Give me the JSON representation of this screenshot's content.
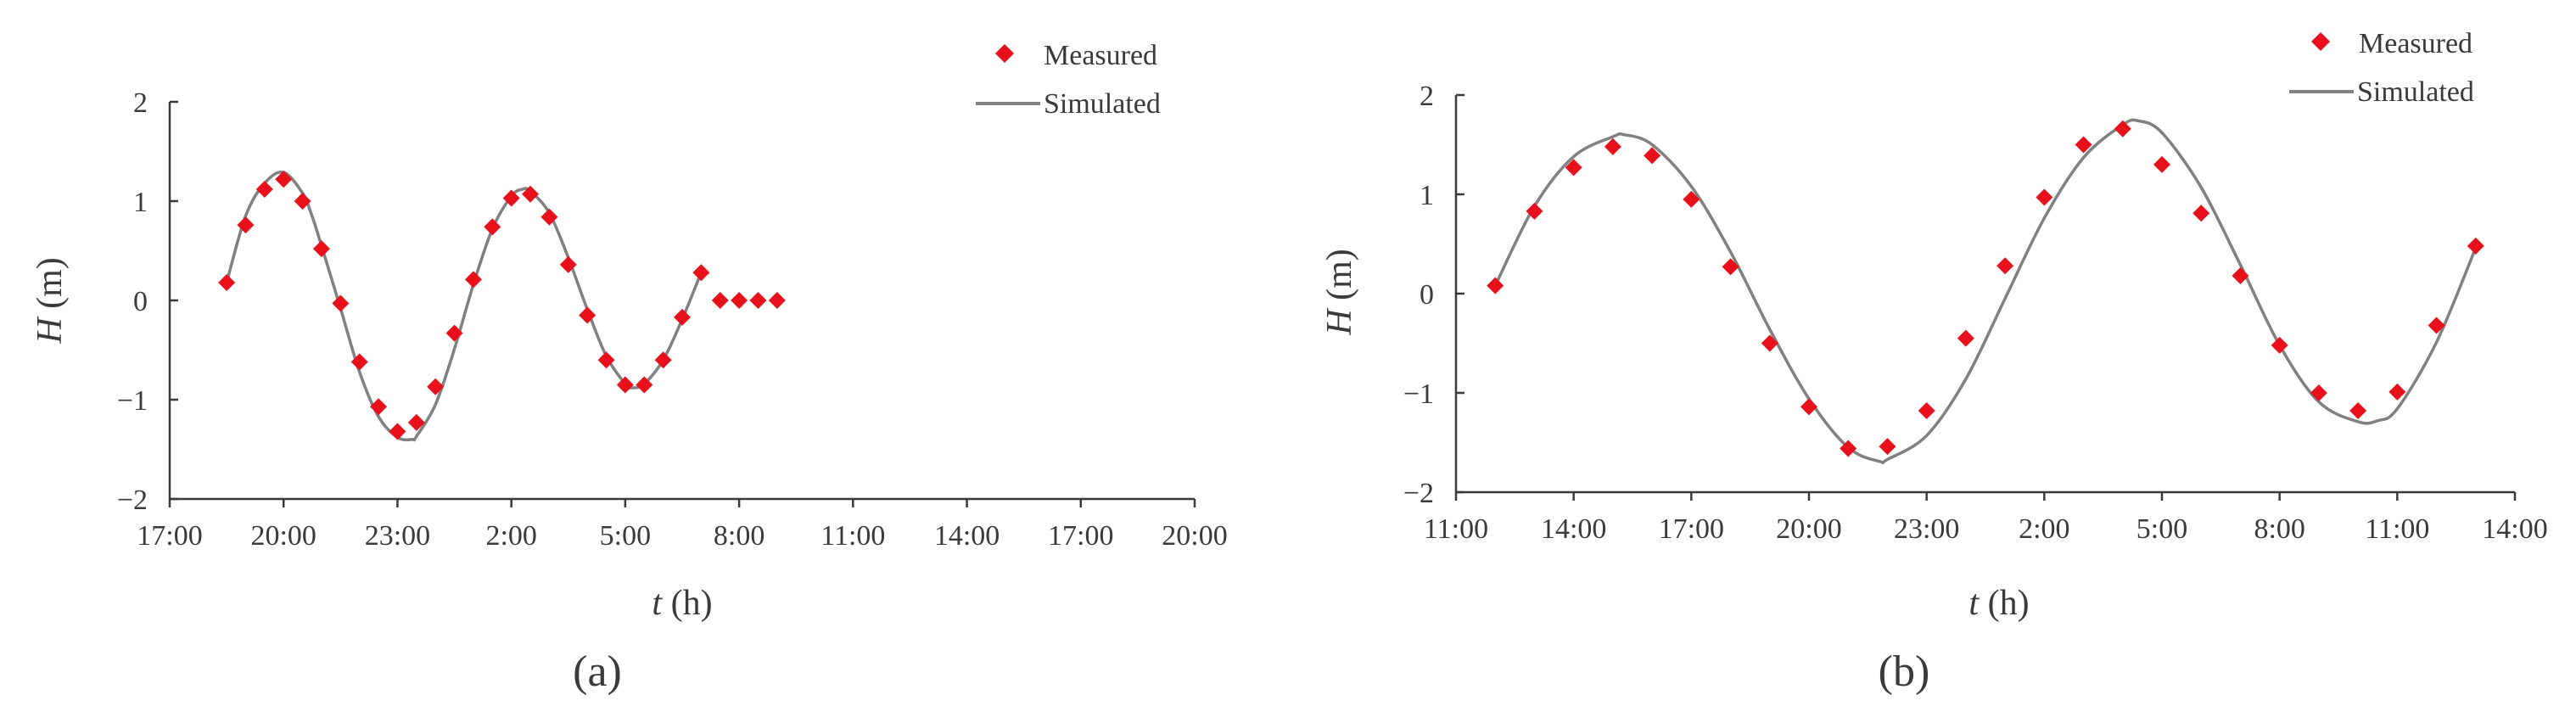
{
  "colors": {
    "measured": "#e8101a",
    "simulated": "#808080",
    "axis": "#3a3a3a",
    "text": "#3a3a3a"
  },
  "chart_data": [
    {
      "type": "scatter+line",
      "panel_label": "(a)",
      "xlabel_var": "t",
      "xlabel_unit": " (h)",
      "ylabel_var": "H",
      "ylabel_unit": " (m)",
      "xlim": [
        0,
        54
      ],
      "ylim": [
        -2,
        2
      ],
      "x_ticks": [
        {
          "x": 0,
          "label": "17:00"
        },
        {
          "x": 6,
          "label": "20:00"
        },
        {
          "x": 12,
          "label": "23:00"
        },
        {
          "x": 18,
          "label": "2:00"
        },
        {
          "x": 24,
          "label": "5:00"
        },
        {
          "x": 30,
          "label": "8:00"
        },
        {
          "x": 36,
          "label": "11:00"
        },
        {
          "x": 42,
          "label": "14:00"
        },
        {
          "x": 48,
          "label": "17:00"
        },
        {
          "x": 54,
          "label": "20:00"
        }
      ],
      "y_ticks": [
        {
          "y": 2,
          "label": "2"
        },
        {
          "x": 0,
          "y": 1,
          "label": "1"
        },
        {
          "y": 0,
          "label": "0"
        },
        {
          "y": -1,
          "label": "−1"
        },
        {
          "y": -2,
          "label": "−2"
        }
      ],
      "legend": {
        "measured": "Measured",
        "simulated": "Simulated",
        "placement": "top-right"
      },
      "series": [
        {
          "name": "Measured",
          "kind": "scatter",
          "x": [
            3,
            4,
            5,
            6,
            7,
            8,
            9,
            10,
            11,
            12,
            13,
            14,
            15,
            16,
            17,
            18,
            19,
            20,
            21,
            22,
            23,
            24,
            25,
            26,
            27,
            28,
            29,
            30,
            31,
            32
          ],
          "y": [
            0.18,
            0.76,
            1.12,
            1.22,
            1.0,
            0.52,
            -0.03,
            -0.62,
            -1.07,
            -1.32,
            -1.23,
            -0.87,
            -0.33,
            0.21,
            0.74,
            1.03,
            1.07,
            0.84,
            0.36,
            -0.15,
            -0.6,
            -0.85,
            -0.85,
            -0.6,
            -0.17,
            0.28,
            0,
            0,
            0,
            0
          ]
        },
        {
          "name": "Simulated",
          "kind": "line",
          "x": [
            3,
            4,
            5,
            6,
            7,
            7.5,
            8,
            9,
            10,
            11,
            12,
            12.8,
            13,
            14,
            15,
            16,
            17,
            18,
            18.6,
            19,
            20,
            21,
            22,
            23,
            24,
            24.4,
            25,
            26,
            27,
            28
          ],
          "y": [
            0.18,
            0.85,
            1.18,
            1.29,
            1.08,
            0.85,
            0.55,
            -0.08,
            -0.72,
            -1.17,
            -1.38,
            -1.4,
            -1.37,
            -1.05,
            -0.49,
            0.16,
            0.72,
            1.05,
            1.12,
            1.1,
            0.88,
            0.43,
            -0.09,
            -0.56,
            -0.84,
            -0.88,
            -0.84,
            -0.6,
            -0.19,
            0.28
          ]
        }
      ]
    },
    {
      "type": "scatter+line",
      "panel_label": "(b)",
      "xlabel_var": "t",
      "xlabel_unit": " (h)",
      "ylabel_var": "H",
      "ylabel_unit": " (m)",
      "xlim": [
        0,
        27
      ],
      "ylim": [
        -2,
        2
      ],
      "x_ticks": [
        {
          "x": 0,
          "label": "11:00"
        },
        {
          "x": 3,
          "label": "14:00"
        },
        {
          "x": 6,
          "label": "17:00"
        },
        {
          "x": 9,
          "label": "20:00"
        },
        {
          "x": 12,
          "label": "23:00"
        },
        {
          "x": 15,
          "label": "2:00"
        },
        {
          "x": 18,
          "label": "5:00"
        },
        {
          "x": 21,
          "label": "8:00"
        },
        {
          "x": 24,
          "label": "11:00"
        },
        {
          "x": 27,
          "label": "14:00"
        }
      ],
      "y_ticks": [
        {
          "y": 2,
          "label": "2"
        },
        {
          "y": 1,
          "label": "1"
        },
        {
          "y": 0,
          "label": "0"
        },
        {
          "y": -1,
          "label": "−1"
        },
        {
          "y": -2,
          "label": "−2"
        }
      ],
      "legend": {
        "measured": "Measured",
        "simulated": "Simulated",
        "placement": "top-right"
      },
      "series": [
        {
          "name": "Measured",
          "kind": "scatter",
          "x": [
            1,
            2,
            3,
            4,
            5,
            6,
            7,
            8,
            9,
            10,
            11,
            12,
            13,
            14,
            15,
            16,
            17,
            18,
            19,
            20,
            21,
            22,
            23,
            24,
            25,
            26
          ],
          "y": [
            0.08,
            0.83,
            1.27,
            1.48,
            1.39,
            0.95,
            0.27,
            -0.5,
            -1.14,
            -1.56,
            -1.54,
            -1.18,
            -0.45,
            0.28,
            0.97,
            1.5,
            1.66,
            1.3,
            0.81,
            0.18,
            -0.52,
            -1.0,
            -1.18,
            -0.99,
            -0.32,
            0.48
          ]
        },
        {
          "name": "Simulated",
          "kind": "line",
          "x": [
            1,
            2,
            3,
            4,
            4.3,
            5,
            6,
            7,
            8,
            9,
            10,
            10.8,
            11,
            12,
            13,
            14,
            15,
            16,
            17,
            17.4,
            18,
            19,
            20,
            21,
            22,
            23,
            23.5,
            24,
            25,
            26
          ],
          "y": [
            0.08,
            0.88,
            1.38,
            1.58,
            1.6,
            1.5,
            1.08,
            0.42,
            -0.36,
            -1.06,
            -1.55,
            -1.69,
            -1.67,
            -1.43,
            -0.86,
            -0.05,
            0.76,
            1.37,
            1.7,
            1.74,
            1.62,
            1.07,
            0.29,
            -0.52,
            -1.09,
            -1.29,
            -1.28,
            -1.16,
            -0.49,
            0.46
          ]
        }
      ]
    }
  ]
}
